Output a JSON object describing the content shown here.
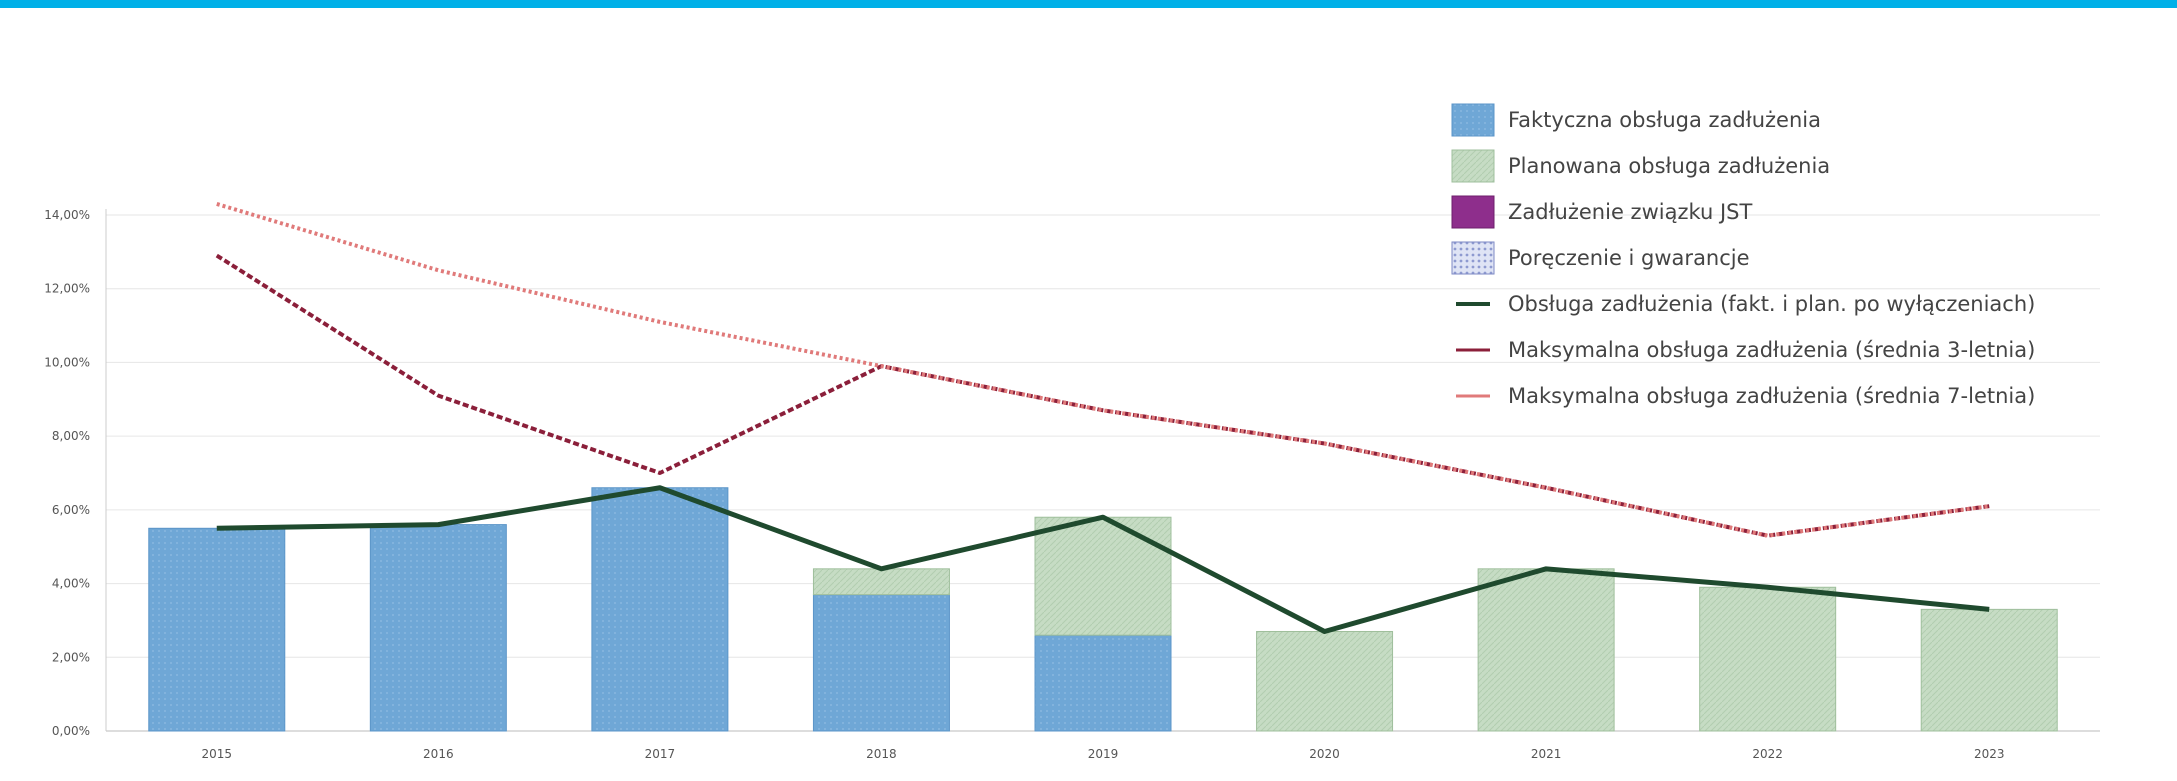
{
  "accent_bar_color": "#00b0e8",
  "chart_data": {
    "type": "bar",
    "title": "",
    "xlabel": "",
    "ylabel": "",
    "categories": [
      "2015",
      "2016",
      "2017",
      "2018",
      "2019",
      "2020",
      "2021",
      "2022",
      "2023"
    ],
    "ylim": [
      0,
      14
    ],
    "y_ticks": [
      "0,00%",
      "2,00%",
      "4,00%",
      "6,00%",
      "8,00%",
      "10,00%",
      "12,00%",
      "14,00%"
    ],
    "grid": true,
    "legend_position": "top-right",
    "stacked": true,
    "series": [
      {
        "name": "Faktyczna obsługa zadłużenia",
        "kind": "bar",
        "color": "#6fa7d6",
        "values": [
          5.5,
          5.6,
          6.6,
          3.7,
          2.6,
          0,
          0,
          0,
          0
        ]
      },
      {
        "name": "Planowana obsługa zadłużenia",
        "kind": "bar",
        "color": "#c6dcc4",
        "values": [
          0,
          0,
          0,
          0.7,
          3.2,
          2.7,
          4.4,
          3.9,
          3.3
        ]
      },
      {
        "name": "Zadłużenie związku JST",
        "kind": "bar",
        "color": "#8e2e8c",
        "values": [
          0,
          0,
          0,
          0,
          0,
          0,
          0,
          0,
          0
        ]
      },
      {
        "name": "Poręczenie i gwarancje",
        "kind": "bar",
        "color": "#c8d0ec",
        "values": [
          0,
          0,
          0,
          0,
          0,
          0,
          0,
          0,
          0
        ]
      },
      {
        "name": "Obsługa zadłużenia (fakt. i plan. po wyłączeniach)",
        "kind": "line",
        "color": "#1f4a2e",
        "values": [
          5.5,
          5.6,
          6.6,
          4.4,
          5.8,
          2.7,
          4.4,
          3.9,
          3.3
        ]
      },
      {
        "name": "Maksymalna obsługa zadłużenia (średnia 3-letnia)",
        "kind": "line",
        "color": "#8b1f3a",
        "values": [
          12.9,
          9.1,
          7.0,
          9.9,
          8.7,
          7.8,
          6.6,
          5.3,
          6.1
        ]
      },
      {
        "name": "Maksymalna obsługa zadłużenia (średnia 7-letnia)",
        "kind": "line",
        "color": "#e07a7a",
        "values": [
          14.3,
          12.5,
          11.1,
          9.9,
          8.7,
          7.8,
          6.6,
          5.3,
          6.1
        ]
      }
    ]
  }
}
